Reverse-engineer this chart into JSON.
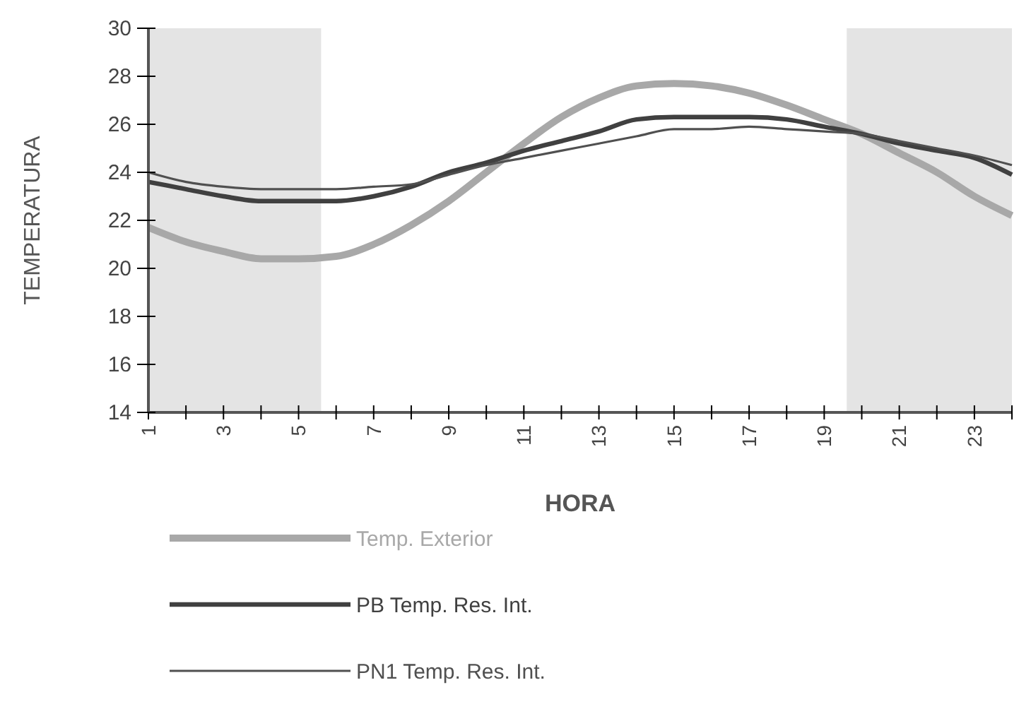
{
  "chart_data": {
    "type": "line",
    "xlabel": "HORA",
    "ylabel": "TEMPERATURA",
    "x": [
      1,
      2,
      3,
      4,
      5,
      6,
      7,
      8,
      9,
      10,
      11,
      12,
      13,
      14,
      15,
      16,
      17,
      18,
      19,
      20,
      21,
      22,
      23,
      24
    ],
    "xlim": [
      1,
      24
    ],
    "xticks": [
      1,
      {
        "value": 2,
        "label": null
      },
      3,
      {
        "value": 4,
        "label": null
      },
      5,
      {
        "value": 6,
        "label": null
      },
      7,
      {
        "value": 8,
        "label": null
      },
      9,
      {
        "value": 10,
        "label": null
      },
      11,
      {
        "value": 12,
        "label": null
      },
      13,
      {
        "value": 14,
        "label": null
      },
      15,
      {
        "value": 16,
        "label": null
      },
      17,
      {
        "value": 18,
        "label": null
      },
      19,
      {
        "value": 20,
        "label": null
      },
      21,
      {
        "value": 22,
        "label": null
      },
      23,
      {
        "value": 24,
        "label": null
      }
    ],
    "ylim": [
      14,
      30
    ],
    "yticks": [
      14,
      16,
      18,
      20,
      22,
      24,
      26,
      28,
      30
    ],
    "grid": false,
    "legend": "bottom",
    "marker": "none",
    "line_style": "solid",
    "bands": [
      {
        "axis": "x",
        "from": 1,
        "to": 5.6,
        "color": "#e4e4e4"
      },
      {
        "axis": "x",
        "from": 19.6,
        "to": 24,
        "color": "#e4e4e4"
      }
    ],
    "series": [
      {
        "name": "Temp. Exterior",
        "color": "#a8a8a8",
        "values": [
          21.7,
          21.1,
          20.7,
          20.4,
          20.4,
          20.5,
          21.0,
          21.8,
          22.8,
          24.0,
          25.2,
          26.3,
          27.1,
          27.6,
          27.7,
          27.6,
          27.3,
          26.8,
          26.2,
          25.6,
          24.8,
          24.0,
          23.0,
          22.2
        ]
      },
      {
        "name": "PB Temp. Res. Int.",
        "color": "#404040",
        "values": [
          23.6,
          23.3,
          23.0,
          22.8,
          22.8,
          22.8,
          23.0,
          23.4,
          24.0,
          24.4,
          24.9,
          25.3,
          25.7,
          26.2,
          26.3,
          26.3,
          26.3,
          26.2,
          25.9,
          25.6,
          25.2,
          24.9,
          24.6,
          23.9
        ]
      },
      {
        "name": "PN1 Temp. Res. Int.",
        "color": "#505050",
        "values": [
          24.0,
          23.6,
          23.4,
          23.3,
          23.3,
          23.3,
          23.4,
          23.5,
          23.9,
          24.3,
          24.6,
          24.9,
          25.2,
          25.5,
          25.8,
          25.8,
          25.9,
          25.8,
          25.7,
          25.6,
          25.3,
          25.0,
          24.7,
          24.3
        ]
      }
    ]
  }
}
